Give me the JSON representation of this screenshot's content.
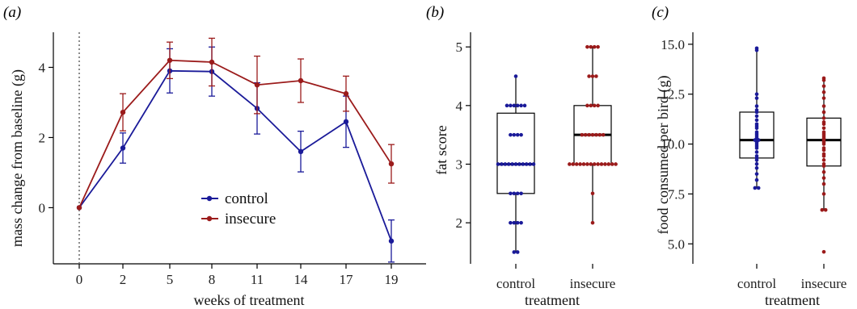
{
  "colors": {
    "control": "#1a1a99",
    "insecure": "#9b1b1b"
  },
  "chart_data": [
    {
      "panel": "(a)",
      "type": "line",
      "xlabel": "weeks of treatment",
      "ylabel": "mass change from baseline (g)",
      "ylim": [
        -1.6,
        5.0
      ],
      "x_ticks": [
        0,
        2,
        5,
        8,
        11,
        14,
        17,
        19
      ],
      "y_ticks": [
        0,
        2,
        4
      ],
      "baseline_week": 0,
      "legend": {
        "position": "bottom-center",
        "entries": [
          "control",
          "insecure"
        ]
      },
      "series": [
        {
          "name": "control",
          "x": [
            0,
            2,
            5,
            8,
            11,
            14,
            17,
            19
          ],
          "y": [
            0,
            1.7,
            3.9,
            3.88,
            2.83,
            1.6,
            2.45,
            -0.95
          ],
          "err": [
            0,
            0.43,
            0.63,
            0.7,
            0.73,
            0.58,
            0.73,
            0.6
          ]
        },
        {
          "name": "insecure",
          "x": [
            0,
            2,
            5,
            8,
            11,
            14,
            17,
            19
          ],
          "y": [
            0,
            2.72,
            4.2,
            4.15,
            3.5,
            3.62,
            3.25,
            1.25
          ],
          "err": [
            0,
            0.53,
            0.52,
            0.68,
            0.82,
            0.62,
            0.5,
            0.55
          ]
        }
      ]
    },
    {
      "panel": "(b)",
      "type": "box",
      "xlabel": "treatment",
      "ylabel": "fat score",
      "ylim": [
        1.3,
        5.25
      ],
      "y_ticks": [
        2,
        3,
        4,
        5
      ],
      "categories": [
        "control",
        "insecure"
      ],
      "boxes": [
        {
          "name": "control",
          "q1": 2.5,
          "median": 3.0,
          "q3": 3.87,
          "whisker_low": 1.5,
          "whisker_high": 4.5,
          "points": [
            1.5,
            1.5,
            2,
            2,
            2,
            2,
            2.5,
            2.5,
            2.5,
            2.5,
            3,
            3,
            3,
            3,
            3,
            3,
            3,
            3,
            3,
            3,
            3,
            3.5,
            3.5,
            3.5,
            3.5,
            4,
            4,
            4,
            4,
            4,
            4,
            4.5
          ]
        },
        {
          "name": "insecure",
          "q1": 3.0,
          "median": 3.5,
          "q3": 4.0,
          "whisker_low": 2.0,
          "whisker_high": 5.0,
          "points": [
            2,
            2.5,
            3,
            3,
            3,
            3,
            3,
            3,
            3,
            3,
            3,
            3,
            3,
            3,
            3,
            3,
            3.5,
            3.5,
            3.5,
            3.5,
            3.5,
            3.5,
            3.5,
            4,
            4,
            4,
            4,
            4.5,
            4.5,
            4.5,
            5,
            5,
            5,
            5
          ]
        }
      ]
    },
    {
      "panel": "(c)",
      "type": "box",
      "xlabel": "treatment",
      "ylabel": "food consumed per bird (g)",
      "ylim": [
        4.0,
        15.6
      ],
      "y_ticks": [
        5.0,
        7.5,
        10.0,
        12.5,
        15.0
      ],
      "y_tick_labels": [
        "5.0",
        "7.5",
        "10.0",
        "12.5",
        "15.0"
      ],
      "categories": [
        "control",
        "insecure"
      ],
      "boxes": [
        {
          "name": "control",
          "q1": 9.3,
          "median": 10.2,
          "q3": 11.6,
          "whisker_low": 7.8,
          "whisker_high": 14.8,
          "points": [
            7.8,
            7.8,
            8.2,
            8.5,
            8.8,
            9.0,
            9.2,
            9.3,
            9.4,
            9.6,
            9.8,
            9.9,
            10.0,
            10.1,
            10.2,
            10.2,
            10.3,
            10.4,
            10.5,
            10.6,
            10.8,
            10.9,
            11.0,
            11.2,
            11.4,
            11.6,
            11.7,
            11.9,
            12.3,
            12.5,
            14.7,
            14.8
          ]
        },
        {
          "name": "insecure",
          "q1": 8.9,
          "median": 10.2,
          "q3": 11.3,
          "whisker_low": 6.7,
          "whisker_high": 13.3,
          "points": [
            4.6,
            6.7,
            6.7,
            7.5,
            8.0,
            8.3,
            8.6,
            8.9,
            9.0,
            9.2,
            9.4,
            9.5,
            9.7,
            9.8,
            10.0,
            10.1,
            10.2,
            10.3,
            10.4,
            10.5,
            10.6,
            10.8,
            11.0,
            11.1,
            11.3,
            11.6,
            11.9,
            12.3,
            12.6,
            12.9,
            13.2,
            13.3
          ]
        }
      ]
    }
  ]
}
